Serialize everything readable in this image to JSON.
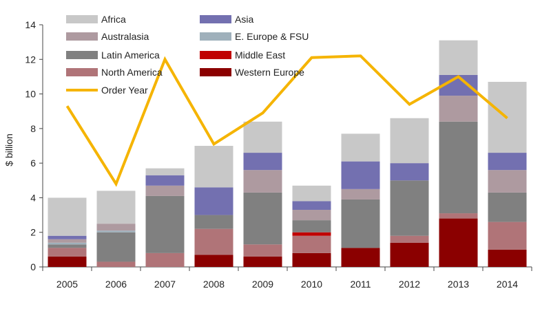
{
  "chart_data": {
    "type": "bar",
    "stacked": true,
    "ylabel": "$ billion",
    "ylim": [
      0,
      14
    ],
    "yticks": [
      0,
      2,
      4,
      6,
      8,
      10,
      12,
      14
    ],
    "grid": false,
    "legend_position": "top-left",
    "categories": [
      "2005",
      "2006",
      "2007",
      "2008",
      "2009",
      "2010",
      "2011",
      "2012",
      "2013",
      "2014"
    ],
    "series": [
      {
        "name": "Western Europe",
        "color": "#8b0000",
        "values": [
          0.6,
          0.0,
          0.0,
          0.7,
          0.6,
          0.8,
          1.1,
          1.4,
          2.8,
          1.0
        ]
      },
      {
        "name": "North America",
        "color": "#b07478",
        "values": [
          0.5,
          0.3,
          0.8,
          1.5,
          0.7,
          1.0,
          0.0,
          0.4,
          0.3,
          1.6
        ]
      },
      {
        "name": "Middle East",
        "color": "#c00000",
        "values": [
          0.0,
          0.0,
          0.0,
          0.0,
          0.0,
          0.2,
          0.0,
          0.0,
          0.0,
          0.0
        ]
      },
      {
        "name": "Latin America",
        "color": "#808080",
        "values": [
          0.2,
          1.7,
          3.3,
          0.8,
          3.0,
          0.7,
          2.8,
          3.2,
          5.3,
          1.7
        ]
      },
      {
        "name": "E. Europe & FSU",
        "color": "#9fb0bb",
        "values": [
          0.1,
          0.1,
          0.0,
          0.0,
          0.0,
          0.0,
          0.0,
          0.0,
          0.0,
          0.0
        ]
      },
      {
        "name": "Australasia",
        "color": "#ae9aa0",
        "values": [
          0.2,
          0.4,
          0.6,
          0.0,
          1.3,
          0.6,
          0.6,
          0.0,
          1.5,
          1.3
        ]
      },
      {
        "name": "Asia",
        "color": "#7370b0",
        "values": [
          0.2,
          0.0,
          0.6,
          1.6,
          1.0,
          0.5,
          1.6,
          1.0,
          1.2,
          1.0
        ]
      },
      {
        "name": "Africa",
        "color": "#c8c8c8",
        "values": [
          2.2,
          1.9,
          0.4,
          2.4,
          1.8,
          0.9,
          1.6,
          2.6,
          2.0,
          4.1
        ]
      }
    ],
    "line_series": {
      "name": "Order Year",
      "color": "#f5b400",
      "values": [
        9.3,
        4.8,
        12.0,
        7.1,
        8.9,
        12.1,
        12.2,
        9.4,
        11.0,
        8.6
      ]
    },
    "legend": [
      {
        "name": "Africa",
        "kind": "box",
        "color": "#c8c8c8"
      },
      {
        "name": "Asia",
        "kind": "box",
        "color": "#7370b0"
      },
      {
        "name": "Australasia",
        "kind": "box",
        "color": "#ae9aa0"
      },
      {
        "name": "E. Europe & FSU",
        "kind": "box",
        "color": "#9fb0bb"
      },
      {
        "name": "Latin America",
        "kind": "box",
        "color": "#808080"
      },
      {
        "name": "Middle East",
        "kind": "box",
        "color": "#c00000"
      },
      {
        "name": "North America",
        "kind": "box",
        "color": "#b07478"
      },
      {
        "name": "Western Europe",
        "kind": "box",
        "color": "#8b0000"
      },
      {
        "name": "Order Year",
        "kind": "line",
        "color": "#f5b400"
      }
    ]
  }
}
